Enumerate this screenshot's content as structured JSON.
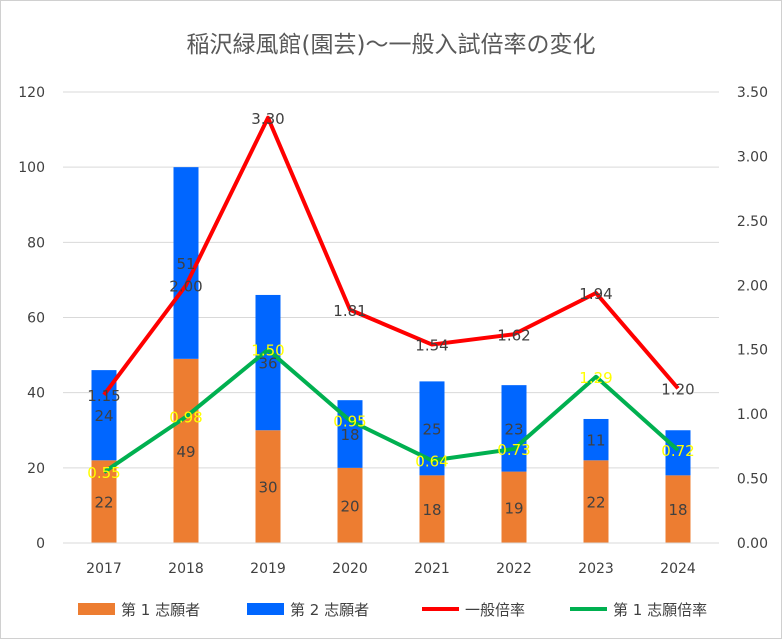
{
  "chart_data": {
    "type": "bar",
    "title": "稲沢緑風館(園芸)～一般入試倍率の変化",
    "categories": [
      "2017",
      "2018",
      "2019",
      "2020",
      "2021",
      "2022",
      "2023",
      "2024"
    ],
    "ylim": [
      0,
      120
    ],
    "y_ticks": [
      "0",
      "20",
      "40",
      "60",
      "80",
      "100",
      "120"
    ],
    "y2lim": [
      0,
      3.5
    ],
    "y2_ticks": [
      "0.00",
      "0.50",
      "1.00",
      "1.50",
      "2.00",
      "2.50",
      "3.00",
      "3.50"
    ],
    "grid": true,
    "legend_position": "bottom",
    "series": [
      {
        "name": "第 1 志願者",
        "type": "bar",
        "stacked": true,
        "axis": "left",
        "color": "#ED7D31",
        "values": [
          22,
          49,
          30,
          20,
          18,
          19,
          22,
          18
        ],
        "labels": [
          "22",
          "49",
          "30",
          "20",
          "18",
          "19",
          "22",
          "18"
        ]
      },
      {
        "name": "第 2 志願者",
        "type": "bar",
        "stacked": true,
        "axis": "left",
        "color": "#0066FF",
        "values": [
          24,
          51,
          36,
          18,
          25,
          23,
          11,
          12
        ],
        "labels": [
          "24",
          "51",
          "36",
          "18",
          "25",
          "23",
          "11",
          ""
        ]
      },
      {
        "name": "一般倍率",
        "type": "line",
        "axis": "right",
        "color": "#FF0000",
        "label_color": "#404040",
        "values": [
          1.15,
          2.0,
          3.3,
          1.81,
          1.54,
          1.62,
          1.94,
          1.2
        ],
        "labels": [
          "1.15",
          "2.00",
          "3.30",
          "1.81",
          "1.54",
          "1.62",
          "1.94",
          "1.20"
        ]
      },
      {
        "name": "第 1 志願倍率",
        "type": "line",
        "axis": "right",
        "color": "#00B050",
        "label_color": "#FFFF00",
        "values": [
          0.55,
          0.98,
          1.5,
          0.95,
          0.64,
          0.73,
          1.29,
          0.72
        ],
        "labels": [
          "0.55",
          "0.98",
          "1.50",
          "0.95",
          "0.64",
          "0.73",
          "1.29",
          "0.72"
        ]
      }
    ]
  }
}
